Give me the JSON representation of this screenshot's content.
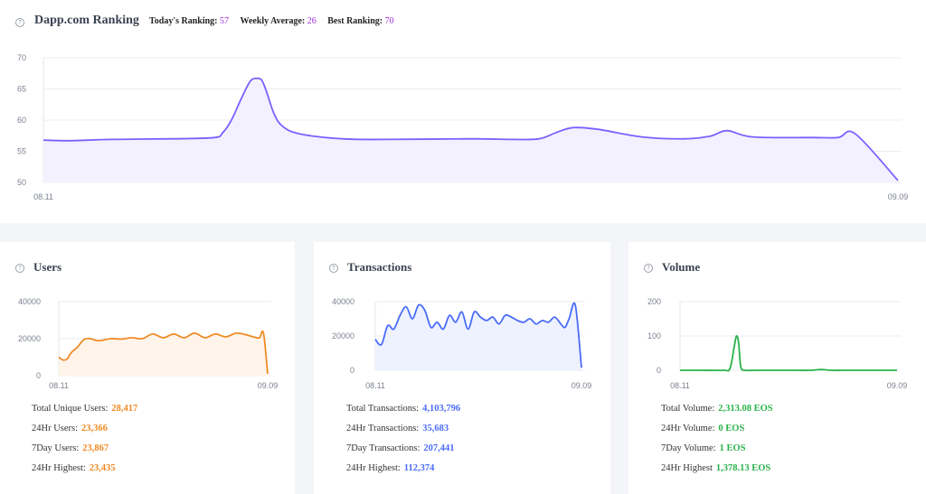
{
  "ranking": {
    "title": "Dapp.com Ranking",
    "today_label": "Today's Ranking:",
    "today_value": "57",
    "weekly_label": "Weekly Average:",
    "weekly_value": "26",
    "best_label": "Best Ranking:",
    "best_value": "70"
  },
  "users": {
    "title": "Users",
    "stats": [
      {
        "label": "Total Unique Users:",
        "value": "28,417"
      },
      {
        "label": "24Hr Users:",
        "value": "23,366"
      },
      {
        "label": "7Day Users:",
        "value": "23,867"
      },
      {
        "label": "24Hr Highest:",
        "value": "23,435"
      }
    ]
  },
  "transactions": {
    "title": "Transactions",
    "stats": [
      {
        "label": "Total Transactions:",
        "value": "4,103,796"
      },
      {
        "label": "24Hr Transactions:",
        "value": "35,683"
      },
      {
        "label": "7Day Transactions:",
        "value": "207,441"
      },
      {
        "label": "24Hr Highest:",
        "value": "112,374"
      }
    ]
  },
  "volume": {
    "title": "Volume",
    "stats": [
      {
        "label": "Total Volume:",
        "value": "2,313.08 EOS"
      },
      {
        "label": "24Hr Volume:",
        "value": "0 EOS"
      },
      {
        "label": "7Day Volume:",
        "value": "1 EOS"
      },
      {
        "label": "24Hr Highest",
        "value": "1,378.13 EOS"
      }
    ]
  },
  "colors": {
    "ranking_line": "#7b61ff",
    "ranking_fill": "#f3f1ff",
    "users_line": "#f08a24",
    "users_fill": "#fff4ea",
    "tx_line": "#4a6cf7",
    "tx_fill": "#eef2ff",
    "vol_line": "#2bb24c",
    "stat_rank": "#9b2bd8"
  },
  "chart_data": [
    {
      "id": "ranking",
      "type": "area",
      "xticks": [
        "08.11",
        "09.09"
      ],
      "yticks": [
        50,
        55,
        60,
        65,
        70
      ],
      "ylim": [
        50,
        70
      ],
      "x": [
        0,
        0.03,
        0.08,
        0.15,
        0.2,
        0.21,
        0.22,
        0.23,
        0.24,
        0.245,
        0.25,
        0.255,
        0.26,
        0.27,
        0.28,
        0.3,
        0.35,
        0.4,
        0.5,
        0.55,
        0.58,
        0.6,
        0.62,
        0.65,
        0.7,
        0.75,
        0.78,
        0.8,
        0.83,
        0.9,
        0.93,
        0.95,
        1.0
      ],
      "values": [
        56.8,
        56.7,
        56.9,
        57.0,
        57.2,
        58,
        60,
        63,
        65.8,
        66.6,
        66.7,
        66.5,
        65,
        61,
        59,
        57.8,
        57.0,
        56.9,
        57.0,
        56.9,
        57.0,
        58.0,
        58.8,
        58.5,
        57.3,
        57.0,
        57.4,
        58.3,
        57.3,
        57.2,
        57.2,
        57.8,
        50.3
      ],
      "grid": true
    },
    {
      "id": "users",
      "type": "area",
      "xticks": [
        "08.11",
        "09.09"
      ],
      "yticks": [
        0,
        20000,
        40000
      ],
      "ylim": [
        0,
        40000
      ],
      "x": [
        0,
        0.02,
        0.04,
        0.06,
        0.09,
        0.12,
        0.15,
        0.18,
        0.2,
        0.25,
        0.3,
        0.35,
        0.4,
        0.45,
        0.5,
        0.55,
        0.6,
        0.65,
        0.7,
        0.75,
        0.8,
        0.85,
        0.9,
        0.93,
        0.96,
        0.98,
        1.0
      ],
      "values": [
        10000,
        8500,
        9000,
        12500,
        15500,
        19500,
        20000,
        19000,
        19000,
        20000,
        19800,
        20500,
        20000,
        22500,
        20500,
        22500,
        20500,
        23000,
        20500,
        22500,
        21000,
        23000,
        22000,
        21000,
        20500,
        23000,
        1000
      ],
      "grid": true
    },
    {
      "id": "transactions",
      "type": "area",
      "xticks": [
        "08.11",
        "09.09"
      ],
      "yticks": [
        0,
        20000,
        40000
      ],
      "ylim": [
        0,
        40000
      ],
      "x": [
        0,
        0.03,
        0.06,
        0.09,
        0.12,
        0.15,
        0.18,
        0.21,
        0.24,
        0.27,
        0.3,
        0.33,
        0.36,
        0.39,
        0.42,
        0.45,
        0.48,
        0.51,
        0.54,
        0.57,
        0.6,
        0.63,
        0.66,
        0.69,
        0.72,
        0.75,
        0.78,
        0.81,
        0.84,
        0.87,
        0.9,
        0.92,
        0.94,
        0.97,
        1.0
      ],
      "values": [
        18000,
        15000,
        26000,
        24000,
        32000,
        37000,
        30000,
        38000,
        35000,
        25000,
        28000,
        24000,
        32000,
        28000,
        34000,
        24000,
        34000,
        31000,
        29000,
        31000,
        27000,
        32000,
        31000,
        29000,
        28000,
        30000,
        27000,
        29000,
        28000,
        31000,
        27000,
        25000,
        30000,
        38000,
        1500
      ],
      "grid": true
    },
    {
      "id": "volume",
      "type": "line",
      "xticks": [
        "08.11",
        "09.09"
      ],
      "yticks": [
        0,
        100,
        200
      ],
      "ylim": [
        0,
        200
      ],
      "x": [
        0,
        0.1,
        0.2,
        0.23,
        0.25,
        0.26,
        0.27,
        0.28,
        0.3,
        0.35,
        0.5,
        0.6,
        0.65,
        0.7,
        0.8,
        1.0
      ],
      "values": [
        0,
        0,
        0,
        5,
        70,
        100,
        80,
        10,
        0,
        0,
        0,
        0,
        2,
        0,
        0,
        0
      ],
      "grid": true
    }
  ]
}
